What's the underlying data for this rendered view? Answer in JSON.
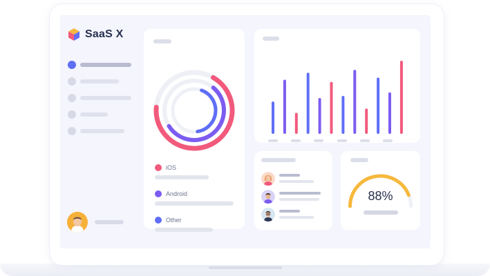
{
  "app": {
    "name": "SaaS X"
  },
  "colors": {
    "blue": "#5f6ef5",
    "purple": "#7c5cf0",
    "pink": "#f25a7c",
    "yellow": "#f6b83c",
    "track": "#eef0f6"
  },
  "sidebar": {
    "items": [
      {
        "icon": "nav-dot-icon",
        "active": true
      },
      {
        "icon": "nav-dot-icon",
        "active": false
      },
      {
        "icon": "nav-dot-icon",
        "active": false
      },
      {
        "icon": "nav-dot-icon",
        "active": false
      },
      {
        "icon": "nav-dot-icon",
        "active": false
      }
    ],
    "user": {
      "icon": "avatar-icon"
    }
  },
  "platforms": {
    "legend": [
      {
        "label": "iOS",
        "color": "#f25a7c"
      },
      {
        "label": "Android",
        "color": "#7c5cf0"
      },
      {
        "label": "Other",
        "color": "#5f6ef5"
      }
    ],
    "rings": [
      {
        "label": "iOS",
        "fraction": 0.68
      },
      {
        "label": "Android",
        "fraction": 0.55
      },
      {
        "label": "Other",
        "fraction": 0.42
      }
    ]
  },
  "activity_chart": {
    "type": "bar",
    "bars": [
      {
        "value": 0.42,
        "color": "#5f6ef5"
      },
      {
        "value": 0.73,
        "color": "#7c5cf0"
      },
      {
        "value": 0.26,
        "color": "#f25a7c"
      },
      {
        "value": 0.83,
        "color": "#5f6ef5"
      },
      {
        "value": 0.47,
        "color": "#7c5cf0"
      },
      {
        "value": 0.7,
        "color": "#f25a7c"
      },
      {
        "value": 0.5,
        "color": "#5f6ef5"
      },
      {
        "value": 0.87,
        "color": "#7c5cf0"
      },
      {
        "value": 0.32,
        "color": "#f25a7c"
      },
      {
        "value": 0.76,
        "color": "#5f6ef5"
      },
      {
        "value": 0.55,
        "color": "#7c5cf0"
      },
      {
        "value": 1.0,
        "color": "#f25a7c"
      }
    ]
  },
  "users": [
    {
      "avatar": "woman-avatar-icon",
      "bg": "#fbd9c9"
    },
    {
      "avatar": "man-avatar-icon",
      "bg": "#d9d4f6"
    },
    {
      "avatar": "man-glasses-avatar-icon",
      "bg": "#d6e6f3"
    }
  ],
  "gauge": {
    "value_text": "88%",
    "fraction": 0.88
  }
}
